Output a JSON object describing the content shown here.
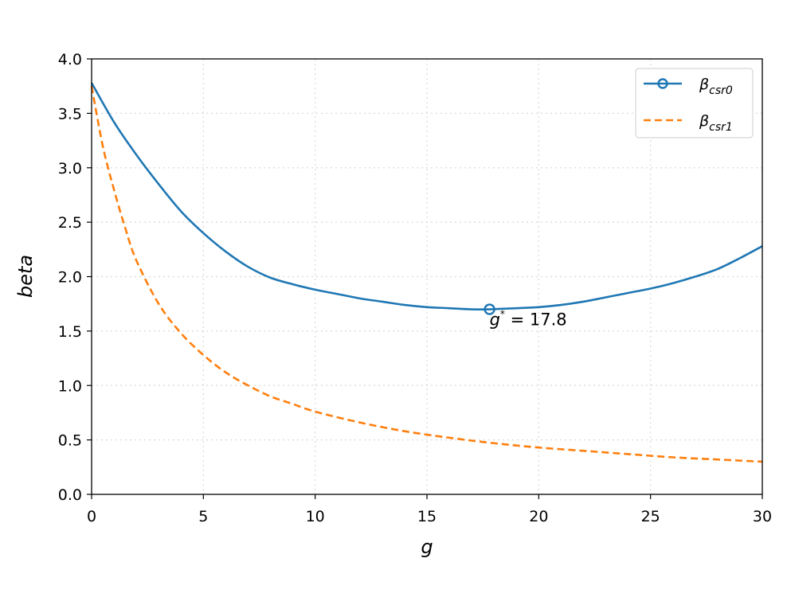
{
  "chart_data": {
    "type": "line",
    "xlabel": "g",
    "ylabel": "beta",
    "xlim": [
      0,
      30
    ],
    "ylim": [
      0,
      4
    ],
    "x_ticks": [
      0,
      5,
      10,
      15,
      20,
      25,
      30
    ],
    "y_ticks": [
      0.0,
      0.5,
      1.0,
      1.5,
      2.0,
      2.5,
      3.0,
      3.5,
      4.0
    ],
    "x_tick_labels": [
      "0",
      "5",
      "10",
      "15",
      "20",
      "25",
      "30"
    ],
    "y_tick_labels": [
      "0.0",
      "0.5",
      "1.0",
      "1.5",
      "2.0",
      "2.5",
      "3.0",
      "3.5",
      "4.0"
    ],
    "grid": true,
    "legend_position": "top-right",
    "series": [
      {
        "name_base": "β",
        "name_sub": "csr0",
        "style": "solid",
        "color": "#1f77b4",
        "marker": "circle-open",
        "x": [
          0,
          1,
          2,
          3,
          4,
          5,
          6,
          7,
          8,
          9,
          10,
          11,
          12,
          13,
          14,
          15,
          16,
          17,
          17.8,
          19,
          20,
          21,
          22,
          23,
          24,
          25,
          26,
          27,
          28,
          29,
          30
        ],
        "y": [
          3.78,
          3.42,
          3.12,
          2.85,
          2.6,
          2.4,
          2.23,
          2.09,
          1.99,
          1.93,
          1.88,
          1.84,
          1.8,
          1.77,
          1.74,
          1.72,
          1.71,
          1.7,
          1.7,
          1.71,
          1.72,
          1.74,
          1.77,
          1.81,
          1.85,
          1.89,
          1.94,
          2.0,
          2.07,
          2.17,
          2.28
        ]
      },
      {
        "name_base": "β",
        "name_sub": "csr1",
        "style": "dashed",
        "color": "#ff7f0e",
        "x": [
          0,
          0.5,
          1,
          1.5,
          2,
          3,
          4,
          5,
          6,
          7,
          8,
          9,
          10,
          12,
          14,
          16,
          18,
          20,
          22,
          24,
          26,
          28,
          30
        ],
        "y": [
          3.75,
          3.2,
          2.8,
          2.45,
          2.15,
          1.75,
          1.48,
          1.28,
          1.12,
          1.0,
          0.9,
          0.83,
          0.76,
          0.66,
          0.58,
          0.52,
          0.47,
          0.43,
          0.4,
          0.37,
          0.34,
          0.32,
          0.3
        ]
      }
    ],
    "annotations": [
      {
        "x": 17.8,
        "y": 1.7,
        "text_base": "g",
        "text_sup": "*",
        "text_rest": " = 17.8"
      }
    ]
  }
}
